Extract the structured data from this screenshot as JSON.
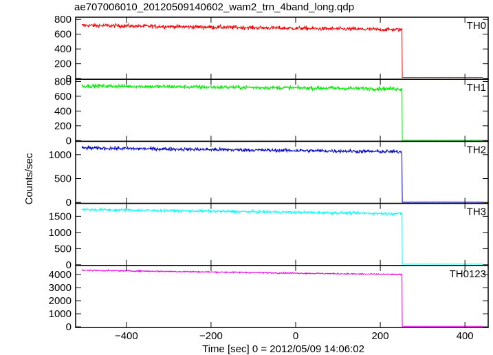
{
  "chart_data": {
    "type": "line",
    "title": "ae707006010_20120509140602_wam2_trn_4band_long.qdp",
    "xlabel": "Time [sec] 0 = 2012/05/09 14:06:02",
    "ylabel": "Counts/sec",
    "xlim": [
      -520,
      455
    ],
    "x_ticks": [
      -400,
      -200,
      0,
      200,
      400
    ],
    "x_tick_labels": [
      "−400",
      "−200",
      "0",
      "200",
      "400"
    ],
    "drop_time": 252,
    "data_start": -505,
    "data_end": 442,
    "panels": [
      {
        "name": "TH0",
        "color": "#ff0000",
        "ylim": [
          -10,
          830
        ],
        "y_ticks": [
          0,
          200,
          400,
          600,
          800
        ],
        "y_tick_labels": [
          "0",
          "200",
          "400",
          "600",
          "800"
        ],
        "level_start": 720,
        "level_end": 660,
        "noise": 25,
        "post_level": 15
      },
      {
        "name": "TH1",
        "color": "#00ee00",
        "ylim": [
          -10,
          830
        ],
        "y_ticks": [
          0,
          200,
          400,
          600,
          800
        ],
        "y_tick_labels": [
          "0",
          "200",
          "400",
          "600",
          "800"
        ],
        "level_start": 740,
        "level_end": 700,
        "noise": 25,
        "post_level": 5
      },
      {
        "name": "TH2",
        "color": "#0000cc",
        "ylim": [
          -20,
          1280
        ],
        "y_ticks": [
          0,
          500,
          1000
        ],
        "y_tick_labels": [
          "0",
          "500",
          "1000"
        ],
        "level_start": 1140,
        "level_end": 1060,
        "noise": 35,
        "post_level": 5
      },
      {
        "name": "TH3",
        "color": "#00ffff",
        "ylim": [
          -20,
          1900
        ],
        "y_ticks": [
          0,
          500,
          1000,
          1500
        ],
        "y_tick_labels": [
          "0",
          "500",
          "1000",
          "1500"
        ],
        "level_start": 1710,
        "level_end": 1580,
        "noise": 40,
        "post_level": 20
      },
      {
        "name": "TH0123",
        "color": "#ee00ee",
        "ylim": [
          -50,
          4700
        ],
        "y_ticks": [
          0,
          1000,
          2000,
          3000,
          4000
        ],
        "y_tick_labels": [
          "0",
          "1000",
          "2000",
          "3000",
          "4000"
        ],
        "level_start": 4330,
        "level_end": 4000,
        "noise": 50,
        "post_level": 40
      }
    ]
  }
}
